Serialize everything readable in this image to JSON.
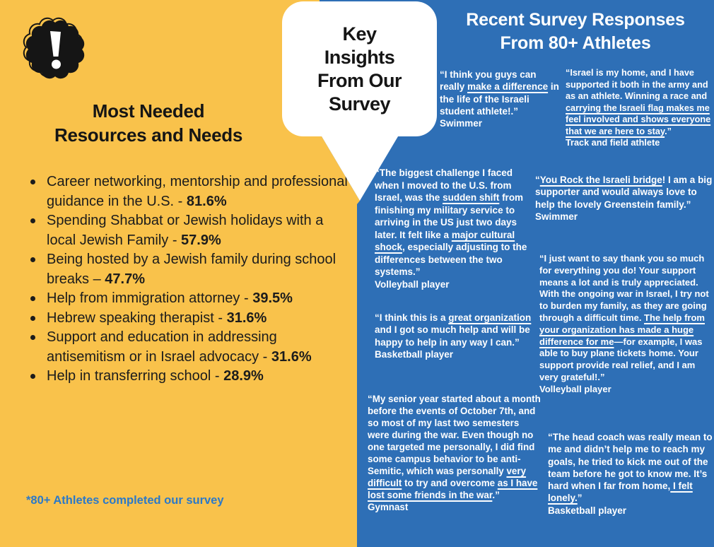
{
  "colors": {
    "yellow": "#F9C24B",
    "blue": "#2E6FB6",
    "footnote_blue": "#2B79C9",
    "ink": "#151515",
    "white": "#FFFFFF"
  },
  "badge_icon": "exclamation-seal-icon",
  "bubble": {
    "lines": [
      "Key",
      "Insights",
      "From Our",
      "Survey"
    ]
  },
  "left_panel": {
    "title_lines": [
      "Most Needed",
      "Resources and Needs"
    ],
    "items": [
      {
        "text": "Career networking, mentorship and professional guidance in the U.S. - ",
        "value": "81.6%"
      },
      {
        "text": "Spending Shabbat or Jewish holidays with a local Jewish Family - ",
        "value": "57.9%"
      },
      {
        "text": "Being hosted by a Jewish family during school breaks – ",
        "value": "47.7%"
      },
      {
        "text": "Help from immigration attorney - ",
        "value": "39.5%"
      },
      {
        "text": "Hebrew speaking therapist - ",
        "value": "31.6%"
      },
      {
        "text": "Support and education in addressing antisemitism or in Israel advocacy - ",
        "value": "31.6%"
      },
      {
        "text": "Help in transferring school - ",
        "value": "28.9%"
      }
    ],
    "footnote": "*80+ Athletes completed our survey"
  },
  "right_panel": {
    "title_lines": [
      "Recent Survey Responses",
      "From 80+ Athletes"
    ],
    "quotes": [
      {
        "segments": [
          [
            "“I think  you guys can really ",
            false
          ],
          [
            "make a difference",
            true
          ],
          [
            " in the life of the Israeli student athlete!.”",
            false
          ]
        ],
        "attribution": "Swimmer"
      },
      {
        "segments": [
          [
            "“Israel is my home, and I have supported it both in the army and as an athlete. Winning a race and ",
            false
          ],
          [
            "carrying the Israeli flag makes me feel involved and shows everyone that we are here to stay",
            true
          ],
          [
            ".”",
            false
          ]
        ],
        "attribution": "Track and field athlete"
      },
      {
        "segments": [
          [
            "“The biggest challenge I faced when I moved to the U.S. from Israel,  was the ",
            false
          ],
          [
            "sudden shift",
            true
          ],
          [
            " from finishing my military service to arriving in the US just two days later. It felt like a ",
            false
          ],
          [
            "major cultural shock",
            true
          ],
          [
            ", especially adjusting to the differences between the two systems.”",
            false
          ]
        ],
        "attribution": "Volleyball player"
      },
      {
        "segments": [
          [
            "“",
            false
          ],
          [
            "You Rock the Israeli bridge",
            true
          ],
          [
            "! I am a big supporter and would always love to help the lovely Greenstein family.”",
            false
          ]
        ],
        "attribution": "Swimmer"
      },
      {
        "segments": [
          [
            "“I just want to say thank you so much for everything you do! Your support means a lot and is truly appreciated. With the ongoing war in Israel, I try not to burden my family, as they are going through a difficult time. ",
            false
          ],
          [
            "The help from your organization has made a huge difference for me",
            true
          ],
          [
            "—for example, I was able to buy plane tickets home. Your support provide real relief, and I am very grateful!.”",
            false
          ]
        ],
        "attribution": "Volleyball player"
      },
      {
        "segments": [
          [
            "“I think this is a ",
            false
          ],
          [
            "great organization",
            true
          ],
          [
            " and I got so much help and will be happy to help in any way I can.”",
            false
          ]
        ],
        "attribution": "Basketball player"
      },
      {
        "segments": [
          [
            "“My senior year started about a month before the events of October 7th, and so most of my last two semesters were during the war. Even though no one targeted me personally, I did find some campus behavior to be anti-Semitic, which was personally ",
            false
          ],
          [
            "very difficult",
            true
          ],
          [
            " to try and overcome ",
            false
          ],
          [
            "as I have lost some friends in the war",
            true
          ],
          [
            ".”",
            false
          ]
        ],
        "attribution": "Gymnast"
      },
      {
        "segments": [
          [
            "“The head coach  was really mean to me and didn’t help me to reach my goals, he tried to kick me out of the team before he got to know me. It’s hard when I far from home,",
            false
          ],
          [
            " I felt lonely.",
            true
          ],
          [
            "”",
            false
          ]
        ],
        "attribution": "Basketball player"
      }
    ]
  }
}
